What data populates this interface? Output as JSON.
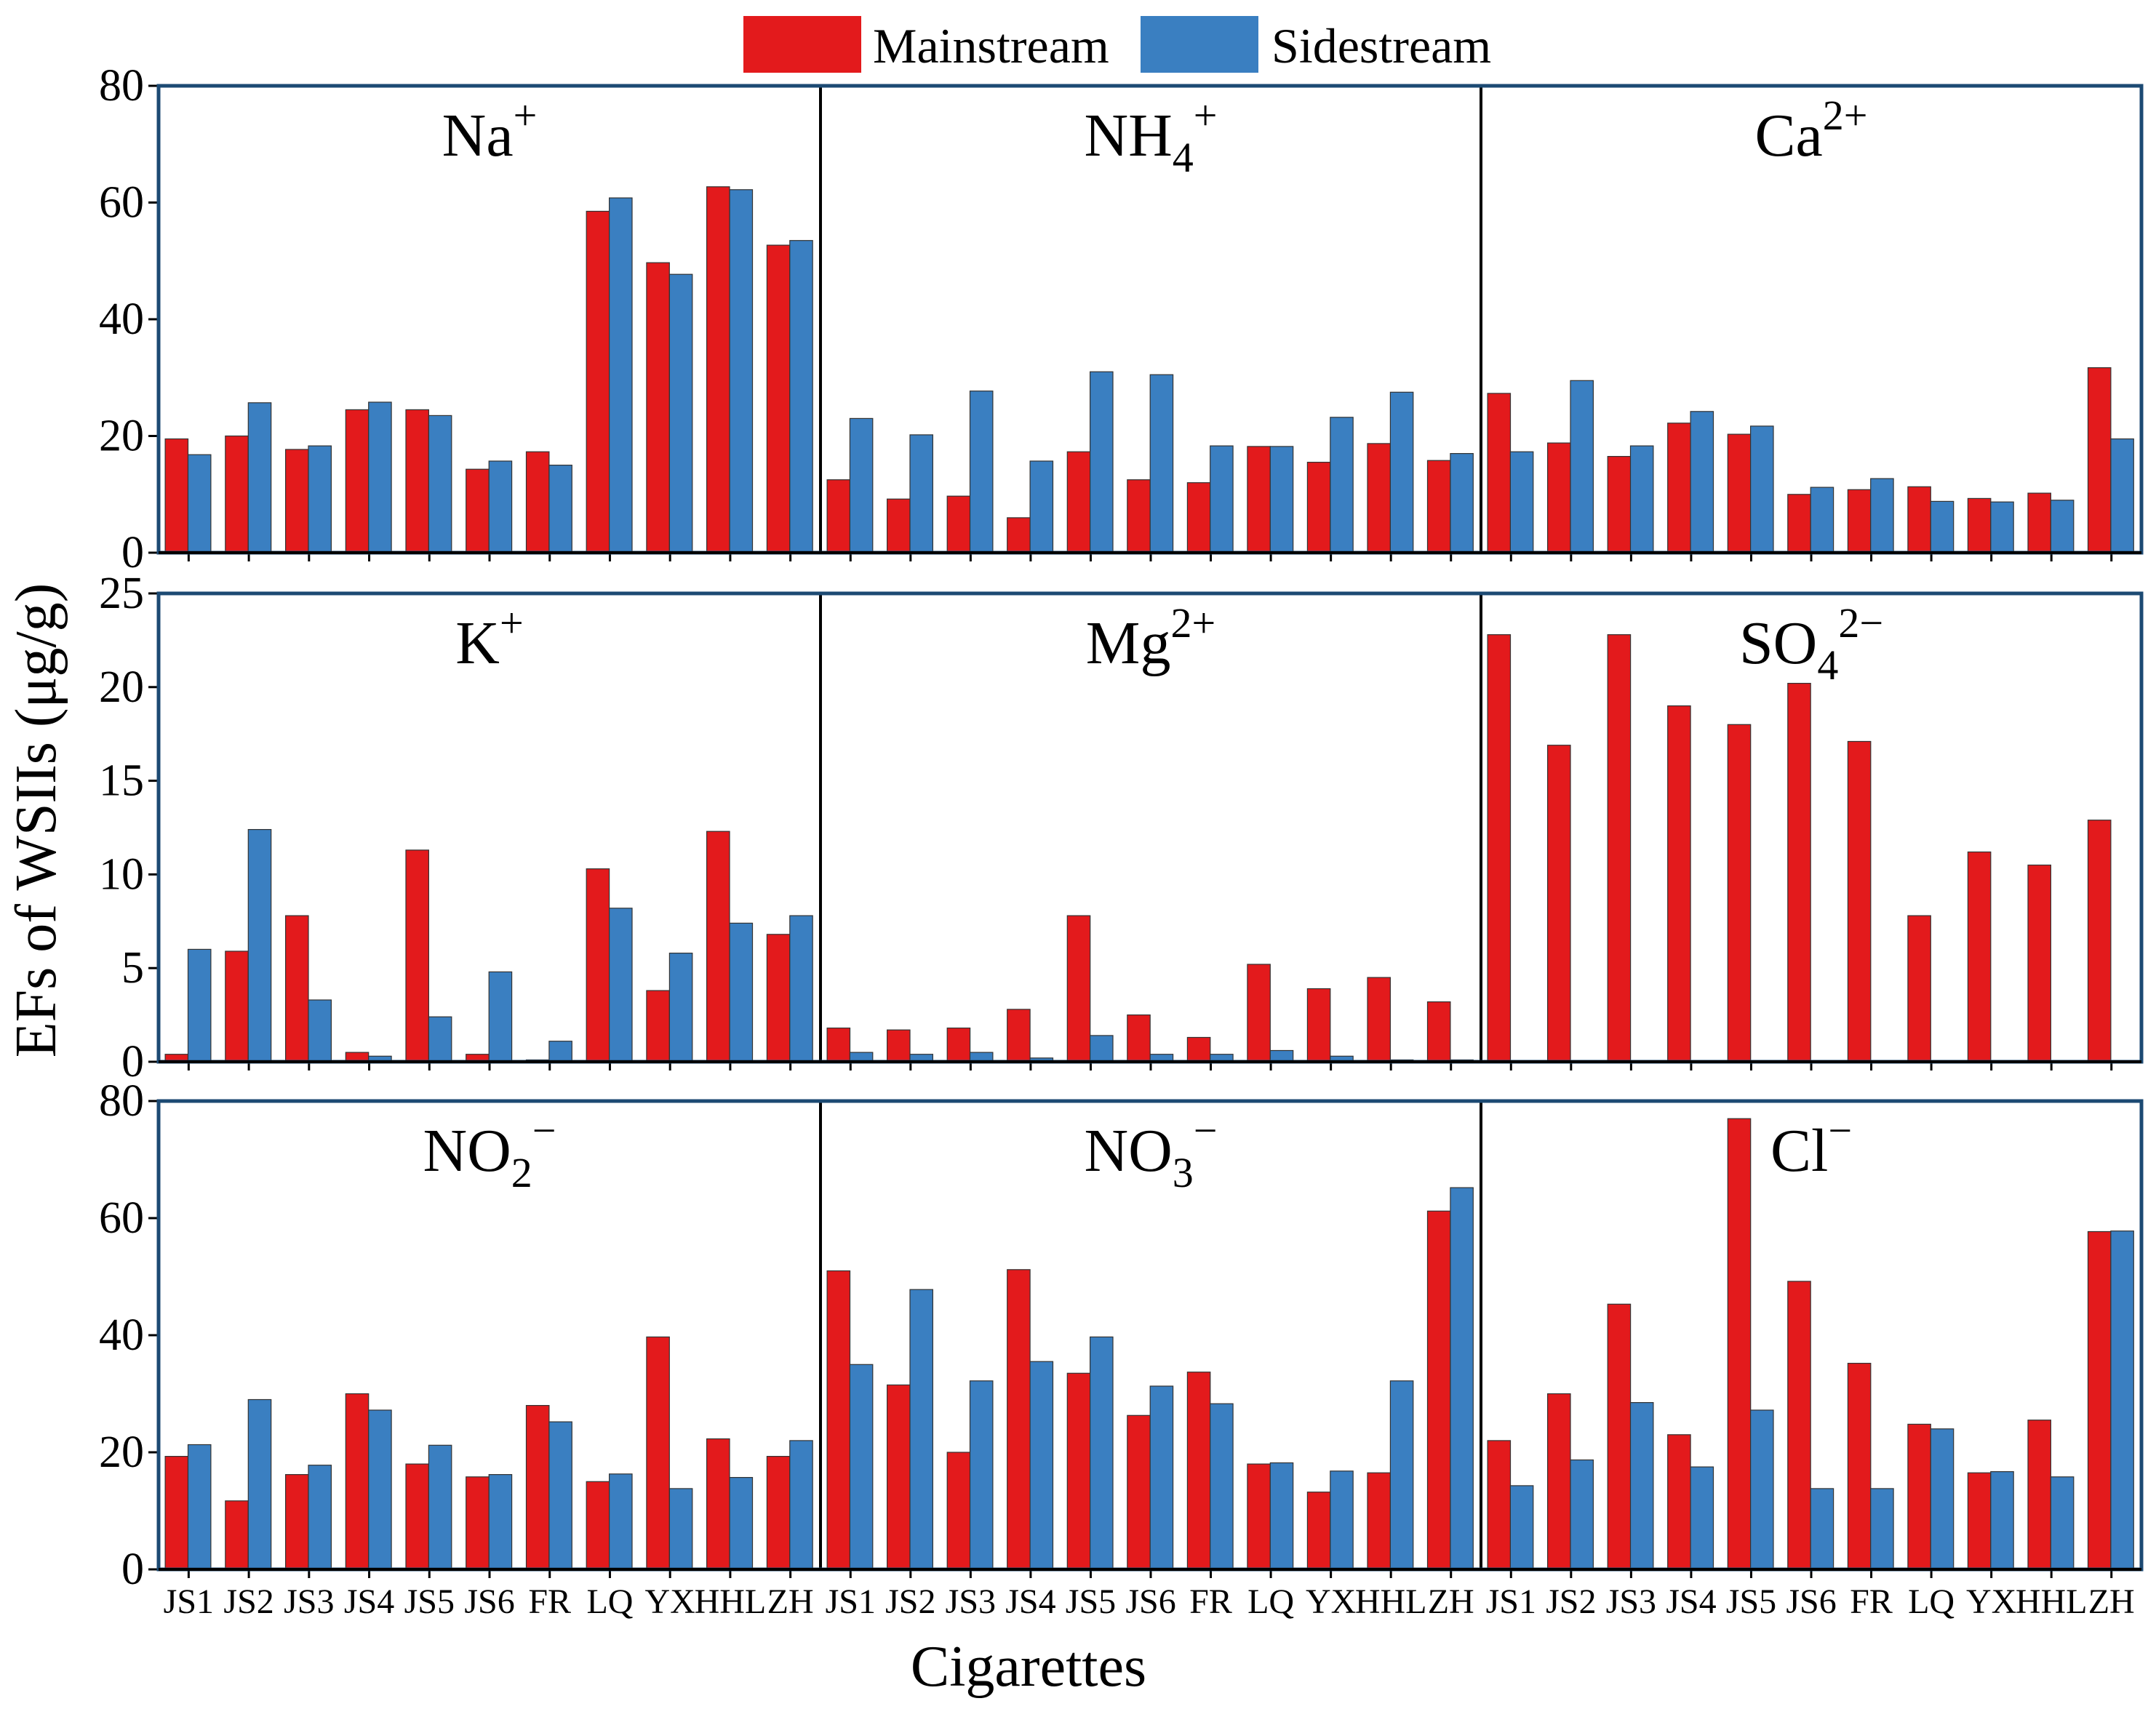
{
  "legend": {
    "mainstream_label": "Mainstream",
    "sidestream_label": "Sidestream"
  },
  "colors": {
    "mainstream": "#e31a1c",
    "sidestream": "#3a7fc1",
    "frame": "#1c4a73"
  },
  "axes": {
    "ylabel": "EFs of WSIIs (μg/g)",
    "xlabel": "Cigarettes"
  },
  "chart_data": [
    {
      "type": "bar",
      "rows": [
        {
          "ylim": [
            0,
            80
          ],
          "yticks": [
            0,
            20,
            40,
            60,
            80
          ]
        },
        {
          "ylim": [
            0,
            25
          ],
          "yticks": [
            0,
            5,
            10,
            15,
            20,
            25
          ]
        },
        {
          "ylim": [
            0,
            80
          ],
          "yticks": [
            0,
            20,
            40,
            60,
            80
          ]
        }
      ],
      "categories": [
        "JS1",
        "JS2",
        "JS3",
        "JS4",
        "JS5",
        "JS6",
        "FR",
        "LQ",
        "YX",
        "HHL",
        "ZH"
      ],
      "panels": [
        {
          "title": {
            "base": "Na",
            "sub": "",
            "sup": "+"
          },
          "series": [
            {
              "name": "Mainstream",
              "values": [
                19.5,
                20,
                17.7,
                24.5,
                24.5,
                14.3,
                17.3,
                58.5,
                49.7,
                62.7,
                52.7
              ]
            },
            {
              "name": "Sidestream",
              "values": [
                16.8,
                25.7,
                18.3,
                25.8,
                23.5,
                15.7,
                15,
                60.8,
                47.7,
                62.2,
                53.5
              ]
            }
          ]
        },
        {
          "title": {
            "base": "NH",
            "sub": "4",
            "sup": "+"
          },
          "series": [
            {
              "name": "Mainstream",
              "values": [
                12.5,
                9.2,
                9.7,
                6,
                17.3,
                12.5,
                12,
                18.2,
                15.5,
                18.7,
                15.8
              ]
            },
            {
              "name": "Sidestream",
              "values": [
                23,
                20.2,
                27.7,
                15.7,
                31,
                30.5,
                18.3,
                18.2,
                23.2,
                27.5,
                17
              ]
            }
          ]
        },
        {
          "title": {
            "base": "Ca",
            "sub": "",
            "sup": "2+"
          },
          "series": [
            {
              "name": "Mainstream",
              "values": [
                27.3,
                18.8,
                16.5,
                22.2,
                20.3,
                10,
                10.8,
                11.3,
                9.3,
                10.2,
                31.7
              ]
            },
            {
              "name": "Sidestream",
              "values": [
                17.3,
                29.5,
                18.3,
                24.2,
                21.7,
                11.2,
                12.7,
                8.8,
                8.7,
                9,
                19.5
              ]
            }
          ]
        },
        {
          "title": {
            "base": "K",
            "sub": "",
            "sup": "+"
          },
          "series": [
            {
              "name": "Mainstream",
              "values": [
                0.4,
                5.9,
                7.8,
                0.5,
                11.3,
                0.4,
                0.1,
                10.3,
                3.8,
                12.3,
                6.8
              ]
            },
            {
              "name": "Sidestream",
              "values": [
                6,
                12.4,
                3.3,
                0.3,
                2.4,
                4.8,
                1.1,
                8.2,
                5.8,
                7.4,
                7.8
              ]
            }
          ]
        },
        {
          "title": {
            "base": "Mg",
            "sub": "",
            "sup": "2+"
          },
          "series": [
            {
              "name": "Mainstream",
              "values": [
                1.8,
                1.7,
                1.8,
                2.8,
                7.8,
                2.5,
                1.3,
                5.2,
                3.9,
                4.5,
                3.2
              ]
            },
            {
              "name": "Sidestream",
              "values": [
                0.5,
                0.4,
                0.5,
                0.2,
                1.4,
                0.4,
                0.4,
                0.6,
                0.3,
                0.1,
                0.1
              ]
            }
          ]
        },
        {
          "title": {
            "base": "SO",
            "sub": "4",
            "sup": "2−"
          },
          "series": [
            {
              "name": "Mainstream",
              "values": [
                22.8,
                16.9,
                22.8,
                19,
                18,
                20.2,
                17.1,
                7.8,
                11.2,
                10.5,
                12.9
              ]
            },
            {
              "name": "Sidestream",
              "values": [
                0,
                0,
                0,
                0,
                0,
                0,
                0,
                0,
                0,
                0,
                0
              ]
            }
          ]
        },
        {
          "title": {
            "base": "NO",
            "sub": "2",
            "sup": "−"
          },
          "series": [
            {
              "name": "Mainstream",
              "values": [
                19.3,
                11.7,
                16.2,
                30,
                18,
                15.8,
                28,
                15,
                39.7,
                22.3,
                19.3
              ]
            },
            {
              "name": "Sidestream",
              "values": [
                21.3,
                29,
                17.8,
                27.2,
                21.2,
                16.2,
                25.2,
                16.3,
                13.8,
                15.7,
                22
              ]
            }
          ]
        },
        {
          "title": {
            "base": "NO",
            "sub": "3",
            "sup": "−"
          },
          "series": [
            {
              "name": "Mainstream",
              "values": [
                51,
                31.5,
                20,
                51.2,
                33.5,
                26.3,
                33.7,
                18,
                13.2,
                16.5,
                61.2
              ]
            },
            {
              "name": "Sidestream",
              "values": [
                35,
                47.8,
                32.2,
                35.5,
                39.7,
                31.3,
                28.3,
                18.2,
                16.8,
                32.2,
                65.2
              ]
            }
          ]
        },
        {
          "title": {
            "base": "Cl",
            "sub": "",
            "sup": "−"
          },
          "series": [
            {
              "name": "Mainstream",
              "values": [
                22,
                30,
                45.3,
                23,
                77,
                49.2,
                35.2,
                24.8,
                16.5,
                25.5,
                57.7
              ]
            },
            {
              "name": "Sidestream",
              "values": [
                14.3,
                18.7,
                28.5,
                17.5,
                27.2,
                13.8,
                13.8,
                24,
                16.7,
                15.8,
                57.8
              ]
            }
          ]
        }
      ]
    }
  ]
}
